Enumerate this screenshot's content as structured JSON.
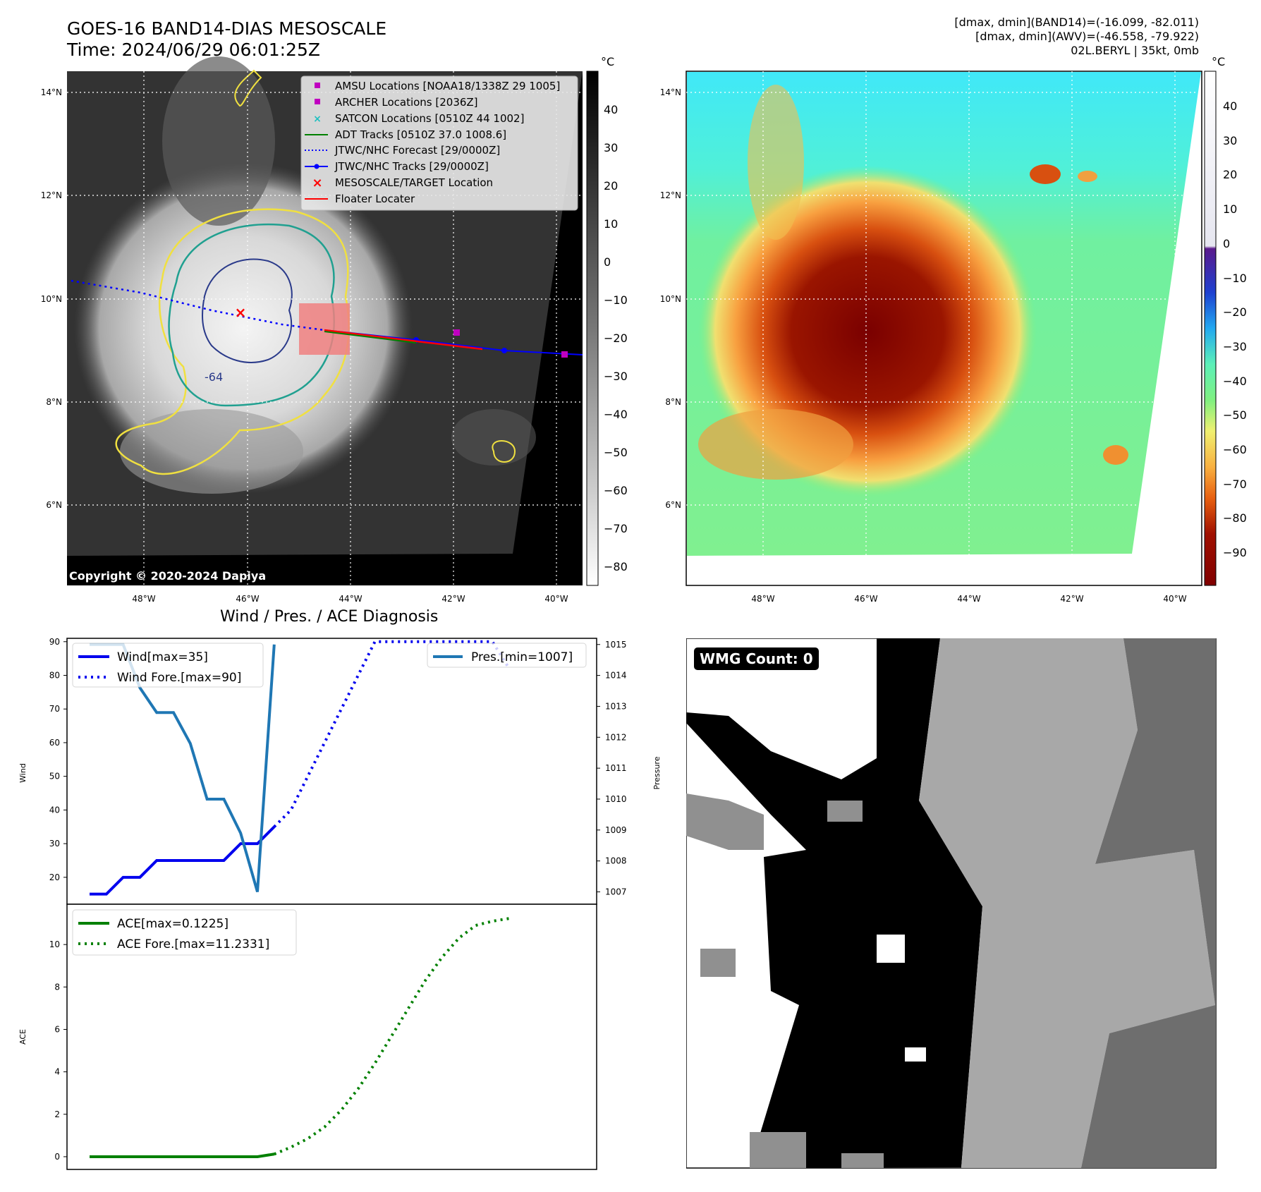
{
  "header": {
    "title_line1": "GOES-16 BAND14-DIAS MESOSCALE",
    "title_line2": "Time: 2024/06/29 06:01:25Z",
    "right_line1": "[dmax, dmin](BAND14)=(-16.099, -82.011)",
    "right_line2": "[dmax, dmin](AWV)=(-46.558, -79.922)",
    "right_line3": "02L.BERYL | 35kt, 0mb"
  },
  "map": {
    "lat_labels": [
      "14°N",
      "12°N",
      "10°N",
      "8°N",
      "6°N"
    ],
    "lon_labels": [
      "48°W",
      "46°W",
      "44°W",
      "42°W",
      "40°W"
    ],
    "copyright": "Copyright © 2020-2024 Dapiya",
    "contour_label": "-64",
    "legend": [
      {
        "label": "AMSU Locations [NOAA18/1338Z 29 1005]",
        "color": "#c000c0",
        "kind": "square"
      },
      {
        "label": "ARCHER Locations [2036Z]",
        "color": "#c000c0",
        "kind": "square"
      },
      {
        "label": "SATCON Locations [0510Z 44 1002]",
        "color": "#20c0c0",
        "kind": "x"
      },
      {
        "label": "ADT Tracks [0510Z 37.0 1008.6]",
        "color": "#008000",
        "kind": "line"
      },
      {
        "label": "JTWC/NHC Forecast [29/0000Z]",
        "color": "#0000ff",
        "kind": "dotted"
      },
      {
        "label": "JTWC/NHC Tracks [29/0000Z]",
        "color": "#0000ff",
        "kind": "line-dot"
      },
      {
        "label": "MESOSCALE/TARGET Location",
        "color": "#ff0000",
        "kind": "x"
      },
      {
        "label": "Floater Locater",
        "color": "#ff0000",
        "kind": "line"
      }
    ]
  },
  "colorbar_gray": {
    "unit": "°C",
    "ticks": [
      "40",
      "30",
      "20",
      "10",
      "0",
      "−10",
      "−20",
      "−30",
      "−40",
      "−50",
      "−60",
      "−70",
      "−80"
    ]
  },
  "colorbar_color": {
    "unit": "°C",
    "ticks": [
      "40",
      "30",
      "20",
      "10",
      "0",
      "−10",
      "−20",
      "−30",
      "−40",
      "−50",
      "−60",
      "−70",
      "−80",
      "−90"
    ]
  },
  "diagnosis": {
    "title": "Wind / Pres. / ACE Diagnosis",
    "wmg": "WMG Count: 0"
  },
  "chart_data": [
    {
      "type": "line",
      "title": "Wind / Pres. / ACE Diagnosis",
      "ylabel": "Wind",
      "y2label": "Pressure",
      "ylim": [
        12,
        91
      ],
      "y2lim": [
        1006.6,
        1015.2
      ],
      "yticks": [
        20,
        30,
        40,
        50,
        60,
        70,
        80,
        90
      ],
      "y2ticks": [
        1007,
        1008,
        1009,
        1010,
        1011,
        1012,
        1013,
        1014,
        1015
      ],
      "legend_left": [
        "Wind[max=35]",
        "Wind Fore.[max=90]"
      ],
      "legend_right": [
        "Pres.[min=1007]"
      ],
      "series": [
        {
          "name": "Wind[max=35]",
          "color": "#0000ee",
          "style": "solid",
          "x": [
            0,
            1,
            2,
            3,
            4,
            5,
            6,
            7,
            8,
            9,
            10,
            11
          ],
          "y": [
            15,
            15,
            20,
            20,
            25,
            25,
            25,
            25,
            25,
            30,
            30,
            35
          ]
        },
        {
          "name": "Wind Fore.[max=90]",
          "color": "#0000ee",
          "style": "dotted",
          "x": [
            11,
            12,
            13,
            14,
            15,
            16,
            17,
            18,
            19,
            20,
            21,
            22,
            23,
            24,
            25
          ],
          "y": [
            35,
            40,
            50,
            60,
            70,
            80,
            90,
            90,
            90,
            90,
            90,
            90,
            90,
            90,
            82
          ]
        },
        {
          "name": "Pres.[min=1007]",
          "color": "#1f77b4",
          "style": "solid",
          "axis": "right",
          "x": [
            0,
            1,
            2,
            3,
            4,
            5,
            6,
            7,
            8,
            9,
            10,
            11
          ],
          "y": [
            1015,
            1015,
            1015,
            1013.6,
            1012.8,
            1012.8,
            1011.8,
            1010,
            1010,
            1008.9,
            1007,
            1015
          ]
        }
      ]
    },
    {
      "type": "line",
      "ylabel": "ACE",
      "ylim": [
        -0.6,
        11.9
      ],
      "yticks": [
        0,
        2,
        4,
        6,
        8,
        10
      ],
      "legend": [
        "ACE[max=0.1225]",
        "ACE Fore.[max=11.2331]"
      ],
      "series": [
        {
          "name": "ACE[max=0.1225]",
          "color": "#008000",
          "style": "solid",
          "x": [
            0,
            1,
            2,
            3,
            4,
            5,
            6,
            7,
            8,
            9,
            10,
            11
          ],
          "y": [
            0,
            0,
            0,
            0,
            0,
            0,
            0,
            0,
            0,
            0,
            0,
            0.1225
          ]
        },
        {
          "name": "ACE Fore.[max=11.2331]",
          "color": "#008000",
          "style": "dotted",
          "x": [
            11,
            12,
            13,
            14,
            15,
            16,
            17,
            18,
            19,
            20,
            21,
            22,
            23,
            24,
            25
          ],
          "y": [
            0.12,
            0.45,
            0.85,
            1.4,
            2.2,
            3.2,
            4.4,
            5.7,
            7.0,
            8.3,
            9.4,
            10.3,
            10.9,
            11.1,
            11.23
          ]
        }
      ]
    }
  ]
}
